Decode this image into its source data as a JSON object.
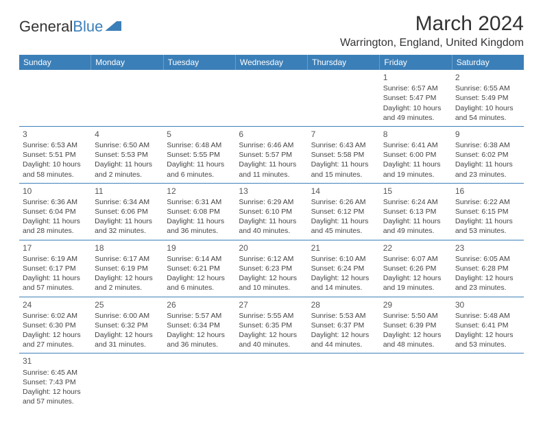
{
  "brand": {
    "part1": "General",
    "part2": "Blue"
  },
  "title": "March 2024",
  "location": "Warrington, England, United Kingdom",
  "header_bg": "#3b7fb8",
  "text_color": "#333333",
  "day_headers": [
    "Sunday",
    "Monday",
    "Tuesday",
    "Wednesday",
    "Thursday",
    "Friday",
    "Saturday"
  ],
  "weeks": [
    [
      null,
      null,
      null,
      null,
      null,
      {
        "n": "1",
        "sr": "Sunrise: 6:57 AM",
        "ss": "Sunset: 5:47 PM",
        "d1": "Daylight: 10 hours",
        "d2": "and 49 minutes."
      },
      {
        "n": "2",
        "sr": "Sunrise: 6:55 AM",
        "ss": "Sunset: 5:49 PM",
        "d1": "Daylight: 10 hours",
        "d2": "and 54 minutes."
      }
    ],
    [
      {
        "n": "3",
        "sr": "Sunrise: 6:53 AM",
        "ss": "Sunset: 5:51 PM",
        "d1": "Daylight: 10 hours",
        "d2": "and 58 minutes."
      },
      {
        "n": "4",
        "sr": "Sunrise: 6:50 AM",
        "ss": "Sunset: 5:53 PM",
        "d1": "Daylight: 11 hours",
        "d2": "and 2 minutes."
      },
      {
        "n": "5",
        "sr": "Sunrise: 6:48 AM",
        "ss": "Sunset: 5:55 PM",
        "d1": "Daylight: 11 hours",
        "d2": "and 6 minutes."
      },
      {
        "n": "6",
        "sr": "Sunrise: 6:46 AM",
        "ss": "Sunset: 5:57 PM",
        "d1": "Daylight: 11 hours",
        "d2": "and 11 minutes."
      },
      {
        "n": "7",
        "sr": "Sunrise: 6:43 AM",
        "ss": "Sunset: 5:58 PM",
        "d1": "Daylight: 11 hours",
        "d2": "and 15 minutes."
      },
      {
        "n": "8",
        "sr": "Sunrise: 6:41 AM",
        "ss": "Sunset: 6:00 PM",
        "d1": "Daylight: 11 hours",
        "d2": "and 19 minutes."
      },
      {
        "n": "9",
        "sr": "Sunrise: 6:38 AM",
        "ss": "Sunset: 6:02 PM",
        "d1": "Daylight: 11 hours",
        "d2": "and 23 minutes."
      }
    ],
    [
      {
        "n": "10",
        "sr": "Sunrise: 6:36 AM",
        "ss": "Sunset: 6:04 PM",
        "d1": "Daylight: 11 hours",
        "d2": "and 28 minutes."
      },
      {
        "n": "11",
        "sr": "Sunrise: 6:34 AM",
        "ss": "Sunset: 6:06 PM",
        "d1": "Daylight: 11 hours",
        "d2": "and 32 minutes."
      },
      {
        "n": "12",
        "sr": "Sunrise: 6:31 AM",
        "ss": "Sunset: 6:08 PM",
        "d1": "Daylight: 11 hours",
        "d2": "and 36 minutes."
      },
      {
        "n": "13",
        "sr": "Sunrise: 6:29 AM",
        "ss": "Sunset: 6:10 PM",
        "d1": "Daylight: 11 hours",
        "d2": "and 40 minutes."
      },
      {
        "n": "14",
        "sr": "Sunrise: 6:26 AM",
        "ss": "Sunset: 6:12 PM",
        "d1": "Daylight: 11 hours",
        "d2": "and 45 minutes."
      },
      {
        "n": "15",
        "sr": "Sunrise: 6:24 AM",
        "ss": "Sunset: 6:13 PM",
        "d1": "Daylight: 11 hours",
        "d2": "and 49 minutes."
      },
      {
        "n": "16",
        "sr": "Sunrise: 6:22 AM",
        "ss": "Sunset: 6:15 PM",
        "d1": "Daylight: 11 hours",
        "d2": "and 53 minutes."
      }
    ],
    [
      {
        "n": "17",
        "sr": "Sunrise: 6:19 AM",
        "ss": "Sunset: 6:17 PM",
        "d1": "Daylight: 11 hours",
        "d2": "and 57 minutes."
      },
      {
        "n": "18",
        "sr": "Sunrise: 6:17 AM",
        "ss": "Sunset: 6:19 PM",
        "d1": "Daylight: 12 hours",
        "d2": "and 2 minutes."
      },
      {
        "n": "19",
        "sr": "Sunrise: 6:14 AM",
        "ss": "Sunset: 6:21 PM",
        "d1": "Daylight: 12 hours",
        "d2": "and 6 minutes."
      },
      {
        "n": "20",
        "sr": "Sunrise: 6:12 AM",
        "ss": "Sunset: 6:23 PM",
        "d1": "Daylight: 12 hours",
        "d2": "and 10 minutes."
      },
      {
        "n": "21",
        "sr": "Sunrise: 6:10 AM",
        "ss": "Sunset: 6:24 PM",
        "d1": "Daylight: 12 hours",
        "d2": "and 14 minutes."
      },
      {
        "n": "22",
        "sr": "Sunrise: 6:07 AM",
        "ss": "Sunset: 6:26 PM",
        "d1": "Daylight: 12 hours",
        "d2": "and 19 minutes."
      },
      {
        "n": "23",
        "sr": "Sunrise: 6:05 AM",
        "ss": "Sunset: 6:28 PM",
        "d1": "Daylight: 12 hours",
        "d2": "and 23 minutes."
      }
    ],
    [
      {
        "n": "24",
        "sr": "Sunrise: 6:02 AM",
        "ss": "Sunset: 6:30 PM",
        "d1": "Daylight: 12 hours",
        "d2": "and 27 minutes."
      },
      {
        "n": "25",
        "sr": "Sunrise: 6:00 AM",
        "ss": "Sunset: 6:32 PM",
        "d1": "Daylight: 12 hours",
        "d2": "and 31 minutes."
      },
      {
        "n": "26",
        "sr": "Sunrise: 5:57 AM",
        "ss": "Sunset: 6:34 PM",
        "d1": "Daylight: 12 hours",
        "d2": "and 36 minutes."
      },
      {
        "n": "27",
        "sr": "Sunrise: 5:55 AM",
        "ss": "Sunset: 6:35 PM",
        "d1": "Daylight: 12 hours",
        "d2": "and 40 minutes."
      },
      {
        "n": "28",
        "sr": "Sunrise: 5:53 AM",
        "ss": "Sunset: 6:37 PM",
        "d1": "Daylight: 12 hours",
        "d2": "and 44 minutes."
      },
      {
        "n": "29",
        "sr": "Sunrise: 5:50 AM",
        "ss": "Sunset: 6:39 PM",
        "d1": "Daylight: 12 hours",
        "d2": "and 48 minutes."
      },
      {
        "n": "30",
        "sr": "Sunrise: 5:48 AM",
        "ss": "Sunset: 6:41 PM",
        "d1": "Daylight: 12 hours",
        "d2": "and 53 minutes."
      }
    ],
    [
      {
        "n": "31",
        "sr": "Sunrise: 6:45 AM",
        "ss": "Sunset: 7:43 PM",
        "d1": "Daylight: 12 hours",
        "d2": "and 57 minutes."
      },
      null,
      null,
      null,
      null,
      null,
      null
    ]
  ]
}
